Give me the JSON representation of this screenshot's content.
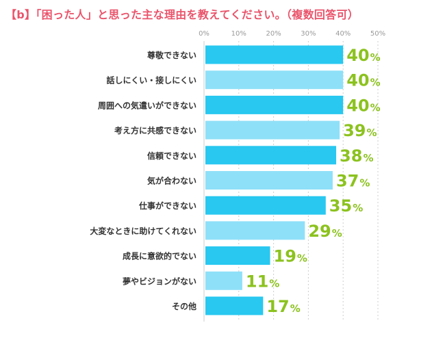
{
  "title": "【b】「困った人」と思った主な理由を教えてください。（複数回答可）",
  "chart_data": {
    "type": "bar",
    "orientation": "horizontal",
    "categories": [
      "尊敬できない",
      "話しにくい・接しにくい",
      "周囲への気遣いができない",
      "考え方に共感できない",
      "信頼できない",
      "気が合わない",
      "仕事ができない",
      "大変なときに助けてくれない",
      "成長に意欲的でない",
      "夢やビジョンがない",
      "その他"
    ],
    "values": [
      40,
      40,
      40,
      39,
      38,
      37,
      35,
      29,
      19,
      11,
      17
    ],
    "value_labels": [
      "40",
      "40",
      "40",
      "39",
      "38",
      "37",
      "35",
      "29",
      "19",
      "11",
      "17"
    ],
    "value_suffix": "%",
    "xlim": [
      0,
      50
    ],
    "xticks": [
      "0%",
      "10%",
      "20%",
      "30%",
      "40%",
      "50%"
    ],
    "grid": true,
    "colors": {
      "bar_dark": "#28c8f0",
      "bar_light": "#8ee0f8",
      "value_label": "#8cc21f",
      "grid": "#cccccc",
      "tick_label": "#999999",
      "category_label": "#333333",
      "title": "#e9546b"
    }
  }
}
